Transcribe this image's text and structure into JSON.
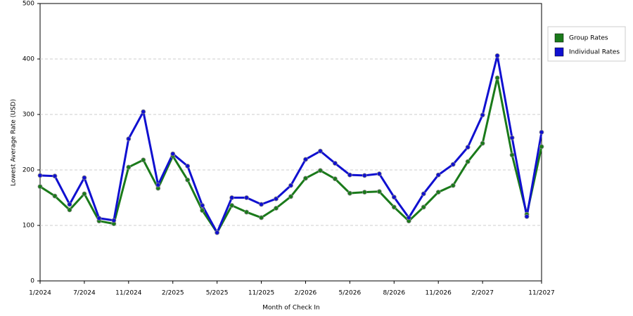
{
  "chart_data": {
    "type": "line",
    "x_label": "Month of Check In",
    "y_label": "Lowest Average Rate (USD)",
    "categories": [
      "1/2024",
      null,
      null,
      "7/2024",
      null,
      null,
      "11/2024",
      null,
      null,
      "2/2025",
      null,
      null,
      "5/2025",
      null,
      null,
      "11/2025",
      null,
      null,
      "2/2026",
      null,
      null,
      "5/2026",
      null,
      null,
      "8/2026",
      null,
      null,
      "11/2026",
      null,
      null,
      "2/2027",
      null,
      null,
      null,
      "11/2027"
    ],
    "series": [
      {
        "name": "Group Rates",
        "color": "#1a7a1a",
        "values": [
          170,
          153,
          128,
          157,
          108,
          103,
          205,
          218,
          167,
          225,
          182,
          127,
          87,
          136,
          124,
          114,
          131,
          152,
          185,
          199,
          184,
          158,
          160,
          161,
          133,
          108,
          133,
          160,
          172,
          215,
          248,
          366,
          227,
          120,
          242
        ]
      },
      {
        "name": "Individual Rates",
        "color": "#1010d0",
        "values": [
          190,
          189,
          138,
          186,
          113,
          109,
          256,
          305,
          173,
          229,
          207,
          136,
          87,
          150,
          150,
          138,
          148,
          172,
          219,
          234,
          212,
          191,
          190,
          193,
          151,
          114,
          157,
          191,
          210,
          241,
          299,
          406,
          258,
          116,
          268
        ]
      }
    ],
    "ylim": [
      0,
      500
    ],
    "yticks": [
      0,
      100,
      200,
      300,
      400,
      500
    ],
    "grid": true,
    "legend": "right"
  }
}
